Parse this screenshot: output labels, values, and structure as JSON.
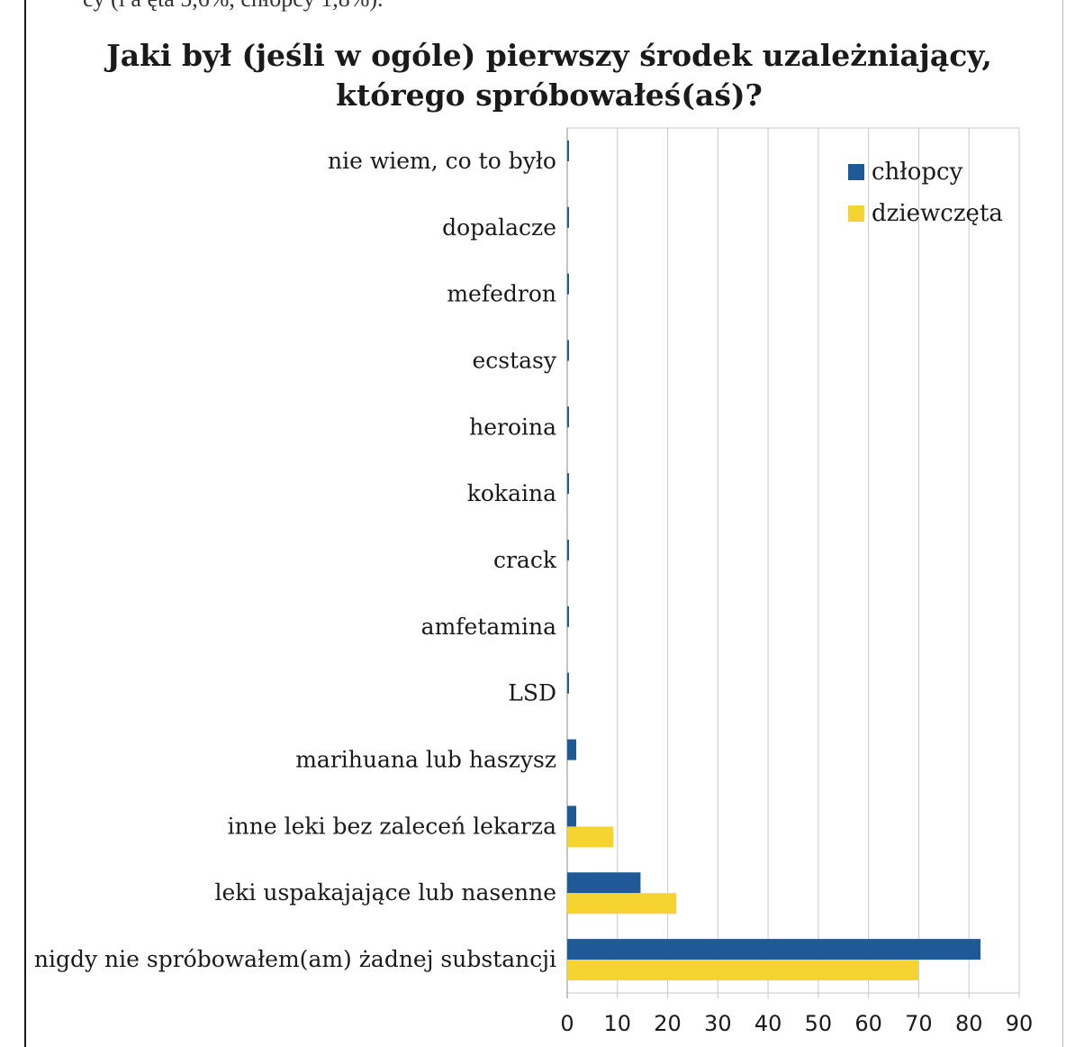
{
  "page": {
    "top_text": "cy (l  a  ęta 5,6%, chłopcy 1,8%)."
  },
  "chart_data": {
    "type": "bar",
    "orientation": "horizontal",
    "title": "Jaki był (jeśli w ogóle) pierwszy środek uzależniający, którego spróbowałeś(aś)?",
    "title_lines": [
      "Jaki był (jeśli w ogóle) pierwszy środek uzależniający,",
      "którego spróbowałeś(aś)?"
    ],
    "categories": [
      "nie wiem, co to było",
      "dopalacze",
      "mefedron",
      "ecstasy",
      "heroina",
      "kokaina",
      "crack",
      "amfetamina",
      "LSD",
      "marihuana lub haszysz",
      "inne leki bez zaleceń lekarza",
      "leki uspakajające lub nasenne",
      "nigdy nie spróbowałem(am) żadnej substancji"
    ],
    "series": [
      {
        "name": "chłopcy",
        "color": "#1f5a96",
        "values": [
          0.3,
          0.3,
          0.3,
          0.3,
          0.3,
          0.3,
          0.3,
          0.3,
          0.3,
          1.8,
          1.8,
          14.6,
          82.3
        ]
      },
      {
        "name": "dziewczęta",
        "color": "#f5d331",
        "values": [
          0,
          0,
          0,
          0,
          0,
          0,
          0,
          0,
          0,
          0,
          9.2,
          21.7,
          69.9
        ]
      }
    ],
    "xlim": [
      0,
      90
    ],
    "xticks": [
      0,
      10,
      20,
      30,
      40,
      50,
      60,
      70,
      80,
      90
    ],
    "grid": true,
    "legend_position": "top-right"
  }
}
